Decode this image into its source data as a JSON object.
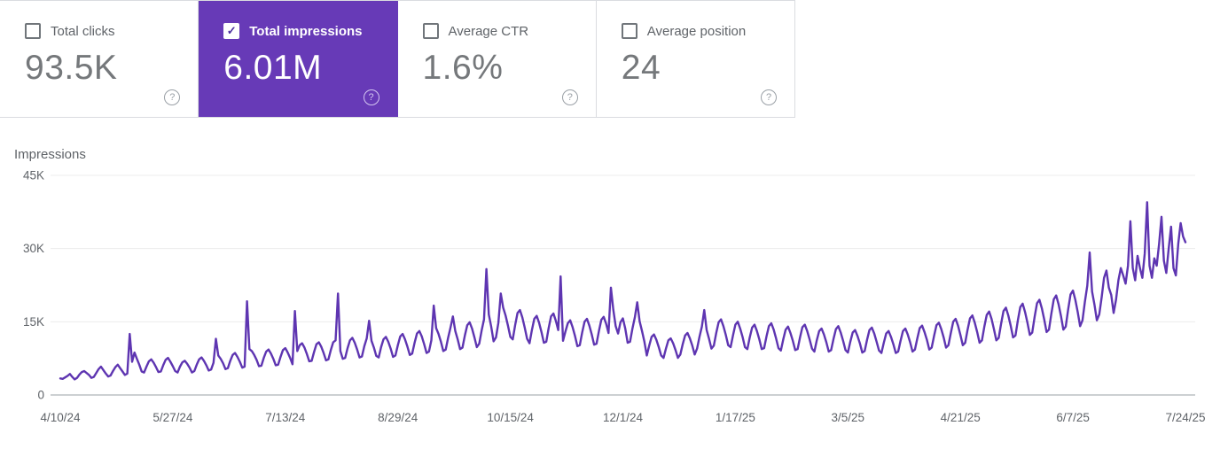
{
  "colors": {
    "accent_card_bg": "#673ab7",
    "line": "#5e35b1",
    "grid": "#ececec",
    "axis": "#9aa0a6",
    "muted_text": "#5f6368",
    "value_text": "#75787b",
    "border": "#dadce0"
  },
  "cards": [
    {
      "label": "Total clicks",
      "value": "93.5K",
      "selected": false,
      "checked": false,
      "check_glyph": "",
      "help_glyph": "?"
    },
    {
      "label": "Total impressions",
      "value": "6.01M",
      "selected": true,
      "checked": true,
      "check_glyph": "✓",
      "help_glyph": "?"
    },
    {
      "label": "Average CTR",
      "value": "1.6%",
      "selected": false,
      "checked": false,
      "check_glyph": "",
      "help_glyph": "?"
    },
    {
      "label": "Average position",
      "value": "24",
      "selected": false,
      "checked": false,
      "check_glyph": "",
      "help_glyph": "?"
    }
  ],
  "chart_data": {
    "type": "line",
    "title": "Impressions",
    "series_name": "Total impressions",
    "total_shown_on_card": "6.01M",
    "unit": "thousand impressions per day",
    "frequency": "daily",
    "date_start": "4/10/24",
    "date_end": "7/24/25",
    "xlabel": "",
    "ylabel": "Impressions",
    "ylim": [
      0,
      45
    ],
    "grid": true,
    "legend_position": "none",
    "y_ticks": [
      {
        "label": "0",
        "value": 0
      },
      {
        "label": "15K",
        "value": 15
      },
      {
        "label": "30K",
        "value": 30
      },
      {
        "label": "45K",
        "value": 45
      }
    ],
    "x_tick_labels": [
      "4/10/24",
      "5/27/24",
      "7/13/24",
      "8/29/24",
      "10/15/24",
      "12/1/24",
      "1/17/25",
      "3/5/25",
      "4/21/25",
      "6/7/25",
      "7/24/25"
    ],
    "x_tick_days": [
      0,
      47,
      94,
      141,
      188,
      235,
      282,
      329,
      376,
      423,
      470
    ],
    "values": [
      3.4,
      3.3,
      3.6,
      3.9,
      4.3,
      3.7,
      3.2,
      3.5,
      4.2,
      4.7,
      4.9,
      4.5,
      4.1,
      3.5,
      3.7,
      4.5,
      5.3,
      5.8,
      5.1,
      4.4,
      3.8,
      4.0,
      4.9,
      5.7,
      6.2,
      5.5,
      4.8,
      4.1,
      4.4,
      12.5,
      6.8,
      8.7,
      7.4,
      6.2,
      4.8,
      4.6,
      5.8,
      6.9,
      7.3,
      6.6,
      5.7,
      4.7,
      4.8,
      6.1,
      7.2,
      7.6,
      6.8,
      5.9,
      4.9,
      4.6,
      5.8,
      6.7,
      7.0,
      6.4,
      5.6,
      4.6,
      4.9,
      6.2,
      7.3,
      7.7,
      7.0,
      6.1,
      5.0,
      5.2,
      6.6,
      11.5,
      8.1,
      7.4,
      6.5,
      5.3,
      5.5,
      7.0,
      8.2,
      8.6,
      7.8,
      6.8,
      5.6,
      5.8,
      19.2,
      9.4,
      9.0,
      8.2,
      7.2,
      5.9,
      6.0,
      7.6,
      8.9,
      9.3,
      8.5,
      7.4,
      6.1,
      6.2,
      7.8,
      9.2,
      9.6,
      8.7,
      7.6,
      6.3,
      17.2,
      9.0,
      10.2,
      10.6,
      9.7,
      8.4,
      6.9,
      7.0,
      8.8,
      10.4,
      10.8,
      9.9,
      8.6,
      7.1,
      7.3,
      9.2,
      10.8,
      11.2,
      20.8,
      9.0,
      7.4,
      7.6,
      9.6,
      11.2,
      11.7,
      10.7,
      9.3,
      7.7,
      7.9,
      10.0,
      11.6,
      15.2,
      11.1,
      9.7,
      8.0,
      7.7,
      9.8,
      11.4,
      11.9,
      10.9,
      9.5,
      7.8,
      8.1,
      10.2,
      12.0,
      12.5,
      11.4,
      9.9,
      8.2,
      8.5,
      10.7,
      12.6,
      13.1,
      12.0,
      10.4,
      8.6,
      8.9,
      11.2,
      18.3,
      13.7,
      12.5,
      10.9,
      9.0,
      9.3,
      11.7,
      13.8,
      16.1,
      13.1,
      11.4,
      9.4,
      9.7,
      12.2,
      14.3,
      14.9,
      13.6,
      11.8,
      9.8,
      10.5,
      13.2,
      15.5,
      25.8,
      16.5,
      14.0,
      11.0,
      11.8,
      14.8,
      20.8,
      17.9,
      16.3,
      14.2,
      11.9,
      11.4,
      14.3,
      16.8,
      17.4,
      15.9,
      13.8,
      11.5,
      10.6,
      13.3,
      15.6,
      16.2,
      14.8,
      12.9,
      10.7,
      10.9,
      13.7,
      16.1,
      16.7,
      15.2,
      13.3,
      24.3,
      11.1,
      13.0,
      14.7,
      15.3,
      13.9,
      12.1,
      10.0,
      10.2,
      12.8,
      15.0,
      15.6,
      14.2,
      12.4,
      10.3,
      10.5,
      13.1,
      15.4,
      16.0,
      14.6,
      12.7,
      22.0,
      17.5,
      14.1,
      12.6,
      14.9,
      15.7,
      13.6,
      10.7,
      10.9,
      13.6,
      15.9,
      19.0,
      15.1,
      13.1,
      10.9,
      8.1,
      10.1,
      11.9,
      12.4,
      11.3,
      9.8,
      8.1,
      7.6,
      9.5,
      11.2,
      11.6,
      10.6,
      9.2,
      7.6,
      8.3,
      10.4,
      12.2,
      12.7,
      11.6,
      10.1,
      8.3,
      9.5,
      11.9,
      14.0,
      17.4,
      13.3,
      11.5,
      9.5,
      10.1,
      12.7,
      14.9,
      15.5,
      14.1,
      12.3,
      10.2,
      9.8,
      12.2,
      14.4,
      15.0,
      13.6,
      11.9,
      9.8,
      9.4,
      11.8,
      13.8,
      14.4,
      13.1,
      11.4,
      9.4,
      9.6,
      12.0,
      14.1,
      14.7,
      13.4,
      11.6,
      9.6,
      9.1,
      11.4,
      13.4,
      14.0,
      12.7,
      11.1,
      9.2,
      9.4,
      11.8,
      13.9,
      14.4,
      13.1,
      11.4,
      9.5,
      8.9,
      11.2,
      13.1,
      13.6,
      12.4,
      10.8,
      8.9,
      9.2,
      11.5,
      13.5,
      14.1,
      12.8,
      11.1,
      9.2,
      8.7,
      10.9,
      12.8,
      13.3,
      12.1,
      10.6,
      8.7,
      9.0,
      11.3,
      13.3,
      13.8,
      12.6,
      10.9,
      9.1,
      8.6,
      10.7,
      12.6,
      13.1,
      11.9,
      10.4,
      8.6,
      8.9,
      11.1,
      13.1,
      13.6,
      12.4,
      10.8,
      8.9,
      9.3,
      11.6,
      13.7,
      14.2,
      12.9,
      11.3,
      9.3,
      9.7,
      12.1,
      14.3,
      14.8,
      13.5,
      11.8,
      9.7,
      10.2,
      12.7,
      15.0,
      15.6,
      14.2,
      12.3,
      10.2,
      10.7,
      13.4,
      15.7,
      16.3,
      14.8,
      12.9,
      10.7,
      11.2,
      14.0,
      16.4,
      17.1,
      15.6,
      13.5,
      11.2,
      11.7,
      14.6,
      17.2,
      17.9,
      16.3,
      14.2,
      11.8,
      12.2,
      15.3,
      18.0,
      18.7,
      17.0,
      14.8,
      12.3,
      12.8,
      16.0,
      18.8,
      19.5,
      17.8,
      15.5,
      12.9,
      13.4,
      16.7,
      19.6,
      20.4,
      18.6,
      16.2,
      13.4,
      14.0,
      17.5,
      20.6,
      21.4,
      19.5,
      17.0,
      14.1,
      15.3,
      19.1,
      22.4,
      29.2,
      21.2,
      18.5,
      15.3,
      16.5,
      20.0,
      24.0,
      25.5,
      22.0,
      20.5,
      16.8,
      19.5,
      23.5,
      26.0,
      24.5,
      22.8,
      26.5,
      35.6,
      26.0,
      23.5,
      28.5,
      26.0,
      24.0,
      29.0,
      39.5,
      26.5,
      24.0,
      28.0,
      26.5,
      31.0,
      36.5,
      27.5,
      25.0,
      30.0,
      34.5,
      26.0,
      24.5,
      31.0,
      35.2,
      32.5,
      31.3
    ]
  }
}
